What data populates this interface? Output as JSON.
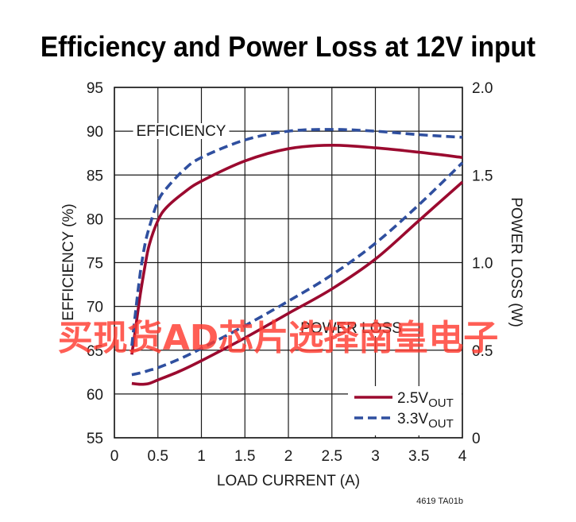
{
  "chart_data": {
    "type": "line",
    "title": "Efficiency and Power Loss at 12V input",
    "xlabel": "LOAD CURRENT (A)",
    "ylabel_left": "EFFICIENCY (%)",
    "ylabel_right": "POWER LOSS (W)",
    "xlim": [
      0,
      4
    ],
    "ylim_left": [
      55,
      95
    ],
    "ylim_right": [
      0,
      2.0
    ],
    "x_ticks": [
      "0",
      "0.5",
      "1",
      "1.5",
      "2",
      "2.5",
      "3",
      "3.5",
      "4"
    ],
    "y_left_ticks": [
      "55",
      "60",
      "65",
      "70",
      "75",
      "80",
      "85",
      "90",
      "95"
    ],
    "y_right_ticks": [
      "0",
      "0.5",
      "1.0",
      "1.5",
      "2.0"
    ],
    "grid": true,
    "annotations": {
      "efficiency": "EFFICIENCY",
      "power_loss": "POWER LOSS"
    },
    "legend": {
      "position": "bottom-right",
      "entries": [
        {
          "base": "2.5V",
          "sub": "OUT",
          "color": "#9b0a2f",
          "dash": "solid"
        },
        {
          "base": "3.3V",
          "sub": "OUT",
          "color": "#2f4f9f",
          "dash": "dashed"
        }
      ]
    },
    "series": [
      {
        "name": "2.5VOUT",
        "group": "efficiency",
        "axis": "left",
        "color": "#9b0a2f",
        "dash": "solid",
        "x": [
          0.2,
          0.25,
          0.3,
          0.35,
          0.4,
          0.5,
          0.6,
          0.8,
          1.0,
          1.5,
          2.0,
          2.5,
          3.0,
          3.5,
          4.0
        ],
        "y": [
          64.5,
          68.0,
          71.5,
          74.5,
          77.0,
          79.8,
          81.3,
          83.0,
          84.3,
          86.6,
          88.0,
          88.4,
          88.1,
          87.6,
          87.0
        ]
      },
      {
        "name": "3.3VOUT",
        "group": "efficiency",
        "axis": "left",
        "color": "#2f4f9f",
        "dash": "dashed",
        "x": [
          0.2,
          0.25,
          0.3,
          0.35,
          0.4,
          0.5,
          0.6,
          0.8,
          1.0,
          1.5,
          2.0,
          2.5,
          3.0,
          3.5,
          4.0
        ],
        "y": [
          65.5,
          70.0,
          74.0,
          77.0,
          79.0,
          82.0,
          83.5,
          85.6,
          87.0,
          89.0,
          90.0,
          90.2,
          90.0,
          89.6,
          89.3
        ]
      },
      {
        "name": "2.5VOUT",
        "group": "power_loss",
        "axis": "right",
        "color": "#9b0a2f",
        "dash": "solid",
        "x": [
          0.2,
          0.3,
          0.4,
          0.5,
          0.75,
          1.0,
          1.5,
          2.0,
          2.5,
          3.0,
          3.5,
          4.0
        ],
        "y": [
          0.31,
          0.305,
          0.31,
          0.33,
          0.38,
          0.44,
          0.57,
          0.71,
          0.85,
          1.02,
          1.24,
          1.46
        ]
      },
      {
        "name": "3.3VOUT",
        "group": "power_loss",
        "axis": "right",
        "color": "#2f4f9f",
        "dash": "dashed",
        "x": [
          0.2,
          0.3,
          0.4,
          0.5,
          0.75,
          1.0,
          1.5,
          2.0,
          2.5,
          3.0,
          3.5,
          4.0
        ],
        "y": [
          0.36,
          0.37,
          0.385,
          0.4,
          0.45,
          0.51,
          0.64,
          0.78,
          0.93,
          1.11,
          1.33,
          1.57
        ]
      }
    ],
    "figure_note": "4619 TA01b"
  },
  "watermark": "买现货AD芯片选择南皇电子"
}
